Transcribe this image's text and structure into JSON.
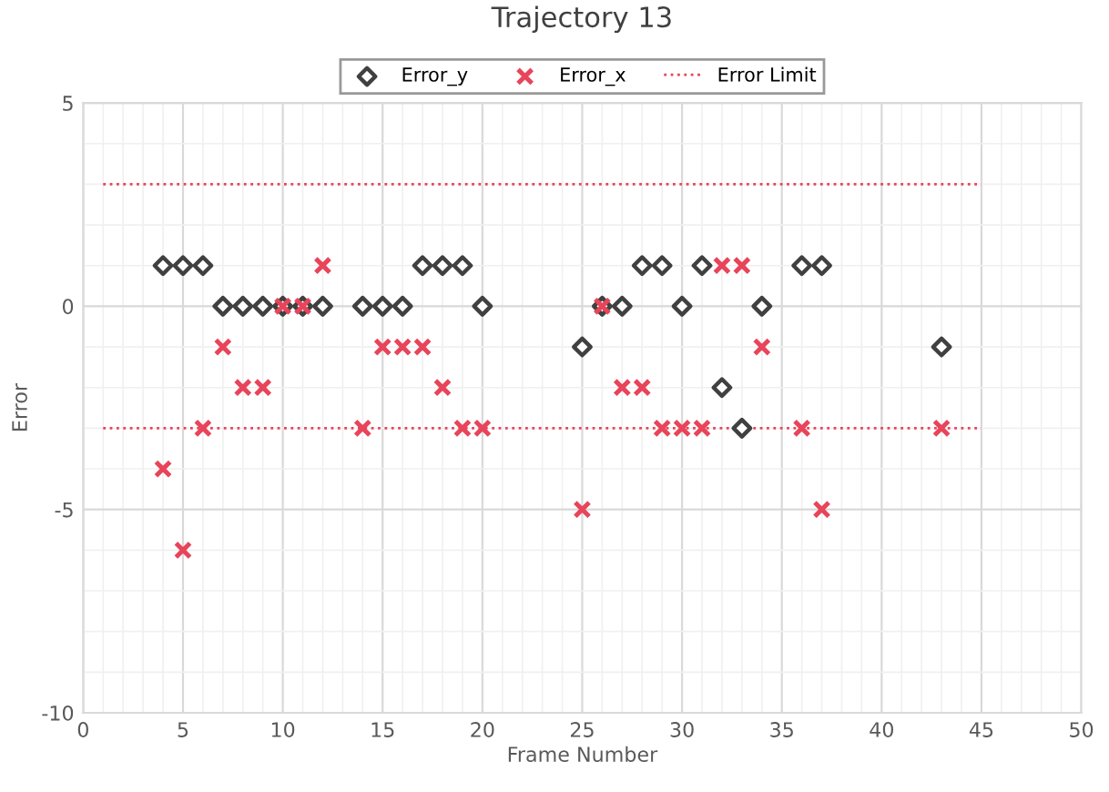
{
  "chart_data": {
    "type": "scatter",
    "title": "Trajectory 13",
    "xlabel": "Frame Number",
    "ylabel": "Error",
    "series": [
      {
        "name": "Error_y",
        "color": "#404040",
        "marker": "diamond",
        "x": [
          4,
          5,
          6,
          7,
          8,
          9,
          10,
          11,
          12,
          14,
          15,
          16,
          17,
          18,
          19,
          20,
          25,
          26,
          27,
          28,
          29,
          30,
          31,
          32,
          33,
          34,
          36,
          37,
          43
        ],
        "values": [
          1,
          1,
          1,
          0,
          0,
          0,
          0,
          0,
          0,
          0,
          0,
          0,
          1,
          1,
          1,
          0,
          -1,
          0,
          0,
          1,
          1,
          0,
          1,
          -2,
          -3,
          0,
          1,
          1,
          -1
        ]
      },
      {
        "name": "Error_x",
        "color": "#e8445a",
        "marker": "cross",
        "x": [
          4,
          5,
          6,
          7,
          8,
          9,
          10,
          11,
          12,
          14,
          15,
          16,
          17,
          18,
          19,
          20,
          25,
          26,
          27,
          28,
          29,
          30,
          31,
          32,
          33,
          34,
          36,
          37,
          43
        ],
        "values": [
          -4,
          -6,
          -3,
          -1,
          -2,
          -2,
          0,
          0,
          1,
          -3,
          -1,
          -1,
          -1,
          -2,
          -3,
          -3,
          -5,
          0,
          -2,
          -2,
          -3,
          -3,
          -3,
          1,
          1,
          -1,
          -3,
          -5,
          -3
        ]
      },
      {
        "name": "Error Limit",
        "type": "line",
        "color": "#e8445a",
        "line_style": "dotted",
        "marker": "none",
        "x": [
          1,
          45
        ],
        "values": [
          3,
          3
        ]
      },
      {
        "type": "line",
        "color": "#e8445a",
        "line_style": "dotted",
        "marker": "none",
        "x": [
          1,
          45
        ],
        "values": [
          -3,
          -3
        ]
      }
    ],
    "xlim": [
      0,
      50
    ],
    "xticks": [
      0,
      5,
      10,
      15,
      20,
      25,
      30,
      35,
      40,
      45,
      50
    ],
    "ylim": [
      -10,
      5
    ],
    "yticks": [
      -10,
      -5,
      0,
      5
    ],
    "grid": true,
    "legend": "top"
  }
}
